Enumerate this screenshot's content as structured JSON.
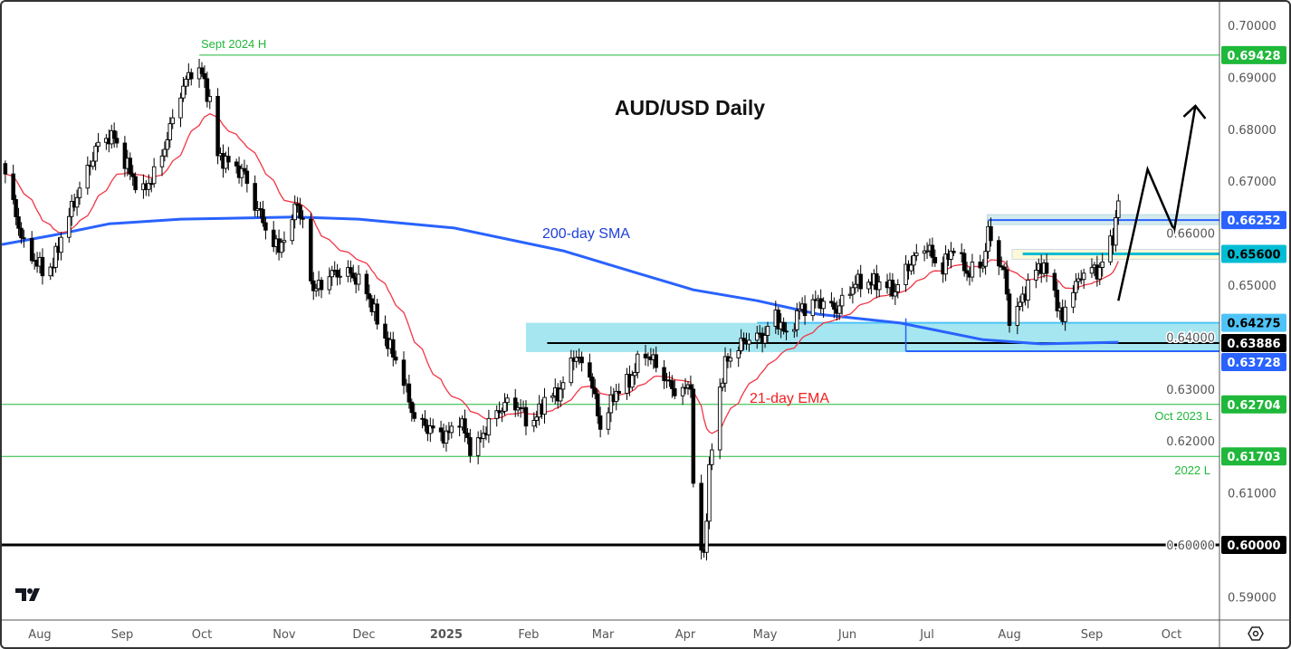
{
  "chart_data": {
    "type": "candlestick",
    "title": "AUD/USD Daily",
    "xlabel": "",
    "ylabel": "",
    "ylim": [
      0.587,
      0.7045
    ],
    "grid": false,
    "x_ticks": [
      {
        "label": "Aug",
        "date": "2024-08-01"
      },
      {
        "label": "Sep",
        "date": "2024-09-01"
      },
      {
        "label": "Oct",
        "date": "2024-10-01"
      },
      {
        "label": "Nov",
        "date": "2024-11-01"
      },
      {
        "label": "Dec",
        "date": "2024-12-01"
      },
      {
        "label": "2025",
        "date": "2025-01-01"
      },
      {
        "label": "Feb",
        "date": "2025-02-01"
      },
      {
        "label": "Mar",
        "date": "2025-03-01"
      },
      {
        "label": "Apr",
        "date": "2025-04-01"
      },
      {
        "label": "May",
        "date": "2025-05-01"
      },
      {
        "label": "Jun",
        "date": "2025-06-01"
      },
      {
        "label": "Jul",
        "date": "2025-07-01"
      },
      {
        "label": "Aug",
        "date": "2025-08-01"
      },
      {
        "label": "Sep",
        "date": "2025-09-01"
      },
      {
        "label": "Oct",
        "date": "2025-10-01"
      }
    ],
    "y_ticks": [
      "0.70000",
      "0.69000",
      "0.68000",
      "0.67000",
      "0.66000",
      "0.65000",
      "0.64000",
      "0.63000",
      "0.62000",
      "0.61000",
      "0.60000",
      "0.59000"
    ],
    "price_path": [
      [
        "2024-07-19",
        0.6714
      ],
      [
        "2024-07-26",
        0.6575
      ],
      [
        "2024-08-03",
        0.6523
      ],
      [
        "2024-08-06",
        0.654
      ],
      [
        "2024-08-10",
        0.661
      ],
      [
        "2024-08-17",
        0.6697
      ],
      [
        "2024-08-24",
        0.6784
      ],
      [
        "2024-08-29",
        0.6784
      ],
      [
        "2024-09-01",
        0.6749
      ],
      [
        "2024-09-06",
        0.6697
      ],
      [
        "2024-09-09",
        0.6679
      ],
      [
        "2024-09-15",
        0.6732
      ],
      [
        "2024-09-20",
        0.6819
      ],
      [
        "2024-09-23",
        0.6871
      ],
      [
        "2024-09-28",
        0.6923
      ],
      [
        "2024-10-01",
        0.6906
      ],
      [
        "2024-10-04",
        0.6854
      ],
      [
        "2024-10-07",
        0.6749
      ],
      [
        "2024-10-12",
        0.6732
      ],
      [
        "2024-10-17",
        0.6714
      ],
      [
        "2024-10-20",
        0.6662
      ],
      [
        "2024-10-24",
        0.6627
      ],
      [
        "2024-10-27",
        0.6575
      ],
      [
        "2024-10-30",
        0.6575
      ],
      [
        "2024-11-04",
        0.661
      ],
      [
        "2024-11-05",
        0.6671
      ],
      [
        "2024-11-09",
        0.6592
      ],
      [
        "2024-11-12",
        0.6488
      ],
      [
        "2024-11-19",
        0.6523
      ],
      [
        "2024-11-26",
        0.6523
      ],
      [
        "2024-12-02",
        0.6488
      ],
      [
        "2024-12-07",
        0.6418
      ],
      [
        "2024-12-14",
        0.6348
      ],
      [
        "2024-12-20",
        0.6244
      ],
      [
        "2024-12-25",
        0.6226
      ],
      [
        "2025-01-01",
        0.6209
      ],
      [
        "2025-01-06",
        0.6244
      ],
      [
        "2025-01-11",
        0.6174
      ],
      [
        "2025-01-18",
        0.6244
      ],
      [
        "2025-01-25",
        0.6279
      ],
      [
        "2025-01-29",
        0.6261
      ],
      [
        "2025-02-02",
        0.6226
      ],
      [
        "2025-02-07",
        0.6279
      ],
      [
        "2025-02-13",
        0.6296
      ],
      [
        "2025-02-18",
        0.6366
      ],
      [
        "2025-02-24",
        0.6331
      ],
      [
        "2025-02-28",
        0.6226
      ],
      [
        "2025-03-06",
        0.6296
      ],
      [
        "2025-03-11",
        0.6314
      ],
      [
        "2025-03-16",
        0.6375
      ],
      [
        "2025-03-21",
        0.6348
      ],
      [
        "2025-03-25",
        0.6314
      ],
      [
        "2025-03-30",
        0.6287
      ],
      [
        "2025-04-03",
        0.6314
      ],
      [
        "2025-04-04",
        0.6105
      ],
      [
        "2025-04-06",
        0.6
      ],
      [
        "2025-04-08",
        0.5983
      ],
      [
        "2025-04-10",
        0.6139
      ],
      [
        "2025-04-13",
        0.6279
      ],
      [
        "2025-04-16",
        0.6348
      ],
      [
        "2025-04-21",
        0.6383
      ],
      [
        "2025-04-26",
        0.6401
      ],
      [
        "2025-05-01",
        0.6401
      ],
      [
        "2025-05-04",
        0.6453
      ],
      [
        "2025-05-09",
        0.6401
      ],
      [
        "2025-05-14",
        0.6453
      ],
      [
        "2025-05-21",
        0.647
      ],
      [
        "2025-05-28",
        0.6453
      ],
      [
        "2025-06-04",
        0.6505
      ],
      [
        "2025-06-09",
        0.6505
      ],
      [
        "2025-06-14",
        0.6505
      ],
      [
        "2025-06-19",
        0.6488
      ],
      [
        "2025-06-22",
        0.6523
      ],
      [
        "2025-06-27",
        0.6557
      ],
      [
        "2025-07-01",
        0.6575
      ],
      [
        "2025-07-06",
        0.6523
      ],
      [
        "2025-07-11",
        0.6575
      ],
      [
        "2025-07-16",
        0.6523
      ],
      [
        "2025-07-22",
        0.654
      ],
      [
        "2025-07-24",
        0.6601
      ],
      [
        "2025-07-27",
        0.6557
      ],
      [
        "2025-07-30",
        0.6523
      ],
      [
        "2025-08-01",
        0.6436
      ],
      [
        "2025-08-04",
        0.6453
      ],
      [
        "2025-08-07",
        0.6488
      ],
      [
        "2025-08-10",
        0.6523
      ],
      [
        "2025-08-13",
        0.654
      ],
      [
        "2025-08-17",
        0.6505
      ],
      [
        "2025-08-21",
        0.6427
      ],
      [
        "2025-08-23",
        0.6488
      ],
      [
        "2025-08-27",
        0.6505
      ],
      [
        "2025-08-30",
        0.654
      ],
      [
        "2025-09-03",
        0.6523
      ],
      [
        "2025-09-06",
        0.6557
      ],
      [
        "2025-09-09",
        0.6592
      ],
      [
        "2025-09-11",
        0.6662
      ]
    ],
    "series": [
      {
        "name": "200-day SMA",
        "color": "#2962ff",
        "values": [
          [
            "2024-07-17",
            0.6578
          ],
          [
            "2024-08-06",
            0.6596
          ],
          [
            "2024-08-27",
            0.6618
          ],
          [
            "2024-09-23",
            0.6627
          ],
          [
            "2024-11-05",
            0.6631
          ],
          [
            "2024-11-29",
            0.6627
          ],
          [
            "2025-01-04",
            0.661
          ],
          [
            "2025-02-14",
            0.6566
          ],
          [
            "2025-03-14",
            0.6523
          ],
          [
            "2025-04-04",
            0.6491
          ],
          [
            "2025-04-28",
            0.647
          ],
          [
            "2025-05-21",
            0.6444
          ],
          [
            "2025-06-21",
            0.6427
          ],
          [
            "2025-07-22",
            0.6395
          ],
          [
            "2025-08-13",
            0.6387
          ],
          [
            "2025-09-11",
            0.639
          ]
        ]
      },
      {
        "name": "21-day EMA",
        "color": "#f23645",
        "period": 21
      }
    ],
    "levels": [
      {
        "value": "0.69428",
        "label": "Sept 2024 H",
        "color": "#1fb83a",
        "start": "2024-09-30"
      },
      {
        "value": "0.66252",
        "label": "",
        "color": "#2962ff",
        "start": "2025-07-24"
      },
      {
        "value": "0.65600",
        "label": "",
        "color": "#00bcd4",
        "start": "2025-08-06"
      },
      {
        "value": "0.64275",
        "label": "",
        "color": "#4fc3f7",
        "start": "2025-01-31"
      },
      {
        "value": "0.63886",
        "label": "",
        "color": "#000000",
        "start": "2025-02-08"
      },
      {
        "value": "0.63728",
        "label": "",
        "color": "#2962ff",
        "start": "2025-06-23"
      },
      {
        "value": "0.62704",
        "label": "Oct 2023 L",
        "color": "#1fb83a",
        "start": "2024-07-15"
      },
      {
        "value": "0.61703",
        "label": "2022 L",
        "color": "#1fb83a",
        "start": "2024-07-15"
      },
      {
        "value": "0.60000",
        "label": "",
        "color": "#000000",
        "start": "2024-07-15"
      }
    ],
    "annotations": {
      "sma_label": "200-day SMA",
      "ema_label": "21-day EMA",
      "projection_arrow": [
        [
          "2025-09-11",
          0.647
        ],
        [
          "2025-09-22",
          0.6723
        ],
        [
          "2025-10-02",
          0.6605
        ],
        [
          "2025-10-10",
          0.6845
        ]
      ]
    }
  },
  "ui": {
    "settings_icon": "gear-icon",
    "logo": "TV"
  }
}
